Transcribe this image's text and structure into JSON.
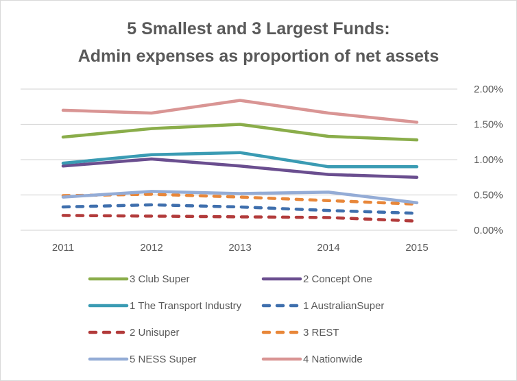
{
  "chart_data": {
    "type": "line",
    "title_line1": "5 Smallest and 3 Largest Funds:",
    "title_line2": "Admin expenses as proportion of net assets",
    "xlabel": "",
    "ylabel": "",
    "x": [
      "2011",
      "2012",
      "2013",
      "2014",
      "2015"
    ],
    "ylim": [
      0,
      0.02
    ],
    "yticks": [
      0,
      0.005,
      0.01,
      0.015,
      0.02
    ],
    "ytick_labels": [
      "0.00%",
      "0.50%",
      "1.00%",
      "1.50%",
      "2.00%"
    ],
    "y_axis_position": "right",
    "grid": true,
    "legend_position": "bottom",
    "series": [
      {
        "name": "3 Club Super",
        "color": "#8aad4a",
        "dash": false,
        "values": [
          0.0132,
          0.0144,
          0.015,
          0.0133,
          0.0128
        ]
      },
      {
        "name": "2 Concept One",
        "color": "#6a4e8f",
        "dash": false,
        "values": [
          0.0091,
          0.0101,
          0.0091,
          0.0079,
          0.0075
        ]
      },
      {
        "name": "1 The Transport Industry",
        "color": "#3a9bb3",
        "dash": false,
        "values": [
          0.0095,
          0.0107,
          0.011,
          0.009,
          0.009
        ]
      },
      {
        "name": "1 AustralianSuper",
        "color": "#3f6fad",
        "dash": true,
        "values": [
          0.0033,
          0.0036,
          0.0033,
          0.0028,
          0.0024
        ]
      },
      {
        "name": "2 Unisuper",
        "color": "#b23b3b",
        "dash": true,
        "values": [
          0.0021,
          0.002,
          0.0019,
          0.0018,
          0.0013
        ]
      },
      {
        "name": "3 REST",
        "color": "#e8873a",
        "dash": true,
        "values": [
          0.0049,
          0.0051,
          0.0047,
          0.0042,
          0.0037
        ]
      },
      {
        "name": "5 NESS Super",
        "color": "#94acd6",
        "dash": false,
        "values": [
          0.0047,
          0.0055,
          0.0052,
          0.0054,
          0.0039
        ]
      },
      {
        "name": "4 Nationwide",
        "color": "#d99594",
        "dash": false,
        "values": [
          0.017,
          0.0166,
          0.0184,
          0.0166,
          0.0153
        ]
      }
    ]
  }
}
